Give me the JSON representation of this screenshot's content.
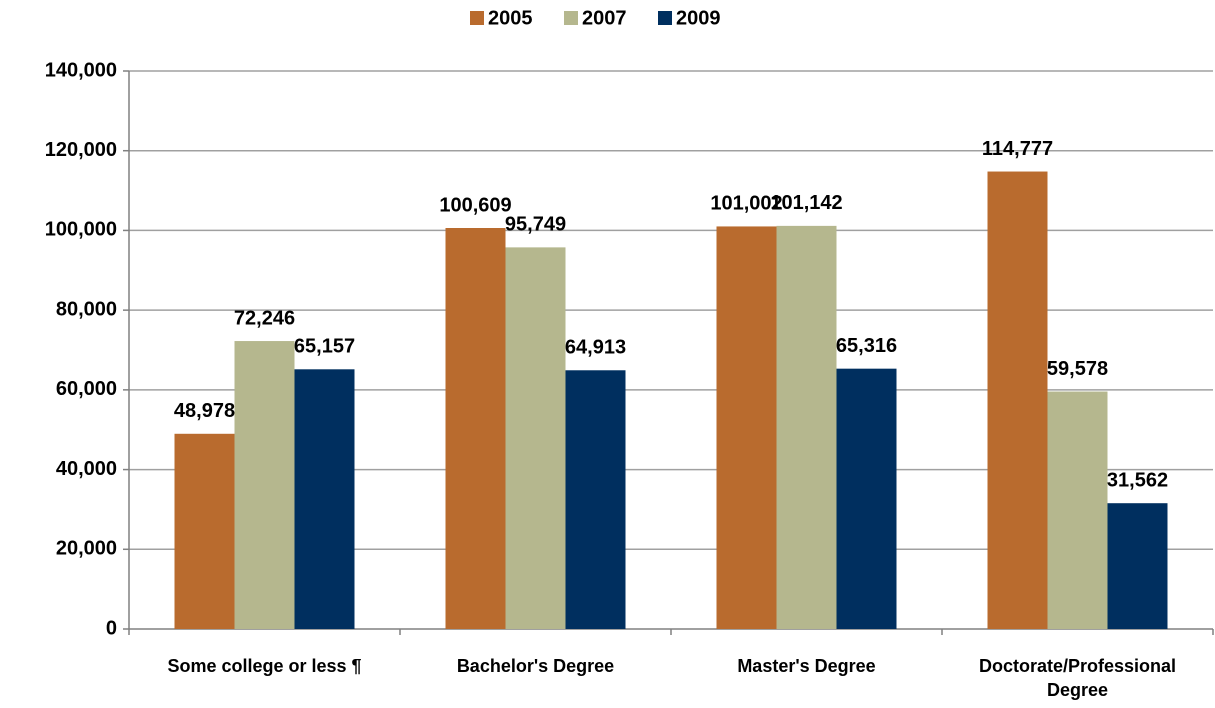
{
  "chart_data": {
    "type": "bar",
    "categories": [
      "Some college or less ¶",
      "Bachelor's Degree",
      "Master's Degree",
      "Doctorate/Professional Degree"
    ],
    "series": [
      {
        "name": "2005",
        "color": "#b96b2e",
        "values": [
          48978,
          100609,
          101002,
          114777
        ],
        "value_labels": [
          "48,978",
          "100,609",
          "101,002",
          "114,777"
        ]
      },
      {
        "name": "2007",
        "color": "#b5b78e",
        "values": [
          72246,
          95749,
          101142,
          59578
        ],
        "value_labels": [
          "72,246",
          "95,749",
          "101,142",
          "59,578"
        ]
      },
      {
        "name": "2009",
        "color": "#002f5f",
        "values": [
          65157,
          64913,
          65316,
          31562
        ],
        "value_labels": [
          "65,157",
          "64,913",
          "65,316",
          "31,562"
        ]
      }
    ],
    "ylim": [
      0,
      140000
    ],
    "yticks": [
      0,
      {
        "value": 20000,
        "label": "20,000"
      },
      {
        "value": 40000,
        "label": "40,000"
      },
      {
        "value": 60000,
        "label": "60,000"
      },
      {
        "value": 80000,
        "label": "80,000"
      },
      {
        "value": 100000,
        "label": "100,000"
      },
      {
        "value": 120000,
        "label": "120,000"
      },
      {
        "value": 140000,
        "label": "140,000"
      }
    ],
    "grid": true,
    "legend": "top"
  }
}
